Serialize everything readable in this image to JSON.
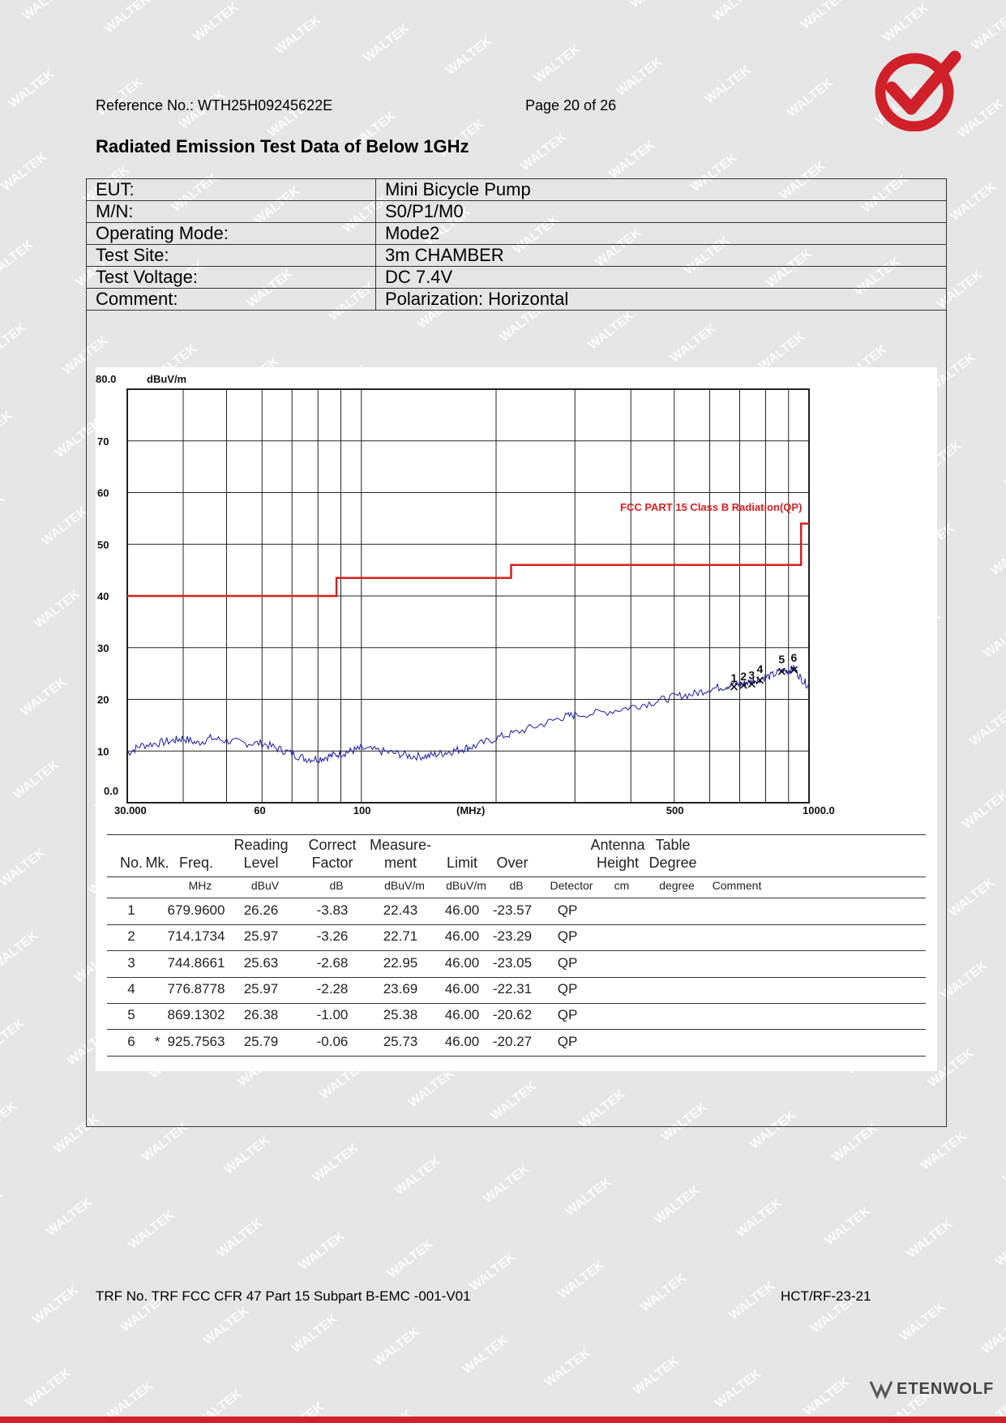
{
  "header": {
    "reference": "Reference No.: WTH25H09245622E",
    "page": "Page 20 of 26"
  },
  "title": "Radiated Emission Test Data of Below 1GHz",
  "info": [
    {
      "label": "EUT:",
      "value": "Mini Bicycle Pump"
    },
    {
      "label": "M/N:",
      "value": "S0/P1/M0"
    },
    {
      "label": "Operating Mode:",
      "value": "Mode2"
    },
    {
      "label": "Test Site:",
      "value": "3m CHAMBER"
    },
    {
      "label": "Test Voltage:",
      "value": "DC 7.4V"
    },
    {
      "label": "Comment:",
      "value": "Polarization: Horizontal"
    }
  ],
  "colors": {
    "limit": "#d81e1e",
    "trace": "#1a1aa8",
    "brand": "#d0202a"
  },
  "chart_data": {
    "type": "line",
    "x_scale": "log",
    "xlim": [
      30,
      1000
    ],
    "ylim": [
      0,
      80
    ],
    "yunit": "dBuV/m",
    "xunit": "(MHz)",
    "x_tick_labels": [
      {
        "x": 30,
        "label": "30.000"
      },
      {
        "x": 60,
        "label": "60"
      },
      {
        "x": 100,
        "label": "100"
      },
      {
        "x": 170,
        "label": "(MHz)"
      },
      {
        "x": 500,
        "label": "500"
      },
      {
        "x": 1000,
        "label": "1000.0"
      }
    ],
    "y_tick_labels": [
      {
        "y": 80,
        "label": "80.0"
      },
      {
        "y": 70,
        "label": "70"
      },
      {
        "y": 60,
        "label": "60"
      },
      {
        "y": 50,
        "label": "50"
      },
      {
        "y": 40,
        "label": "40"
      },
      {
        "y": 30,
        "label": "30"
      },
      {
        "y": 20,
        "label": "20"
      },
      {
        "y": 10,
        "label": "10"
      },
      {
        "y": 0,
        "label": "0.0"
      }
    ],
    "limit_label": "FCC PART 15 Class B Radiation(QP)",
    "series": [
      {
        "name": "FCC PART 15 Class B Radiation(QP)",
        "points": [
          [
            30,
            40
          ],
          [
            88,
            40
          ],
          [
            88,
            43.5
          ],
          [
            216,
            43.5
          ],
          [
            216,
            46
          ],
          [
            960,
            46
          ],
          [
            960,
            54
          ],
          [
            1000,
            54
          ]
        ]
      },
      {
        "name": "",
        "points": [
          [
            30,
            9.5
          ],
          [
            32,
            11
          ],
          [
            35,
            11.5
          ],
          [
            38,
            12
          ],
          [
            40,
            12.5
          ],
          [
            43,
            11.5
          ],
          [
            46,
            12.5
          ],
          [
            50,
            12
          ],
          [
            55,
            11.5
          ],
          [
            60,
            11.5
          ],
          [
            65,
            10.5
          ],
          [
            70,
            9.5
          ],
          [
            75,
            8.5
          ],
          [
            80,
            8.5
          ],
          [
            85,
            9
          ],
          [
            90,
            9.5
          ],
          [
            95,
            10
          ],
          [
            100,
            10.5
          ],
          [
            110,
            10
          ],
          [
            120,
            9.5
          ],
          [
            130,
            9
          ],
          [
            140,
            9
          ],
          [
            150,
            9.5
          ],
          [
            160,
            10
          ],
          [
            170,
            10.5
          ],
          [
            180,
            11
          ],
          [
            200,
            12.5
          ],
          [
            220,
            13.5
          ],
          [
            250,
            15
          ],
          [
            280,
            16.5
          ],
          [
            300,
            17
          ],
          [
            350,
            17.5
          ],
          [
            400,
            18.5
          ],
          [
            450,
            19.5
          ],
          [
            500,
            20.5
          ],
          [
            550,
            21
          ],
          [
            600,
            22
          ],
          [
            650,
            22.5
          ],
          [
            680,
            23
          ],
          [
            714,
            23
          ],
          [
            745,
            23.5
          ],
          [
            777,
            24
          ],
          [
            820,
            24.5
          ],
          [
            869,
            25.5
          ],
          [
            900,
            25.5
          ],
          [
            926,
            26
          ],
          [
            960,
            24
          ],
          [
            1000,
            22.5
          ]
        ]
      }
    ],
    "markers": [
      {
        "no": "1",
        "x": 679.96,
        "y": 22.43
      },
      {
        "no": "2",
        "x": 714.1734,
        "y": 22.71
      },
      {
        "no": "3",
        "x": 744.8661,
        "y": 22.95
      },
      {
        "no": "4",
        "x": 776.8778,
        "y": 23.69
      },
      {
        "no": "5",
        "x": 869.1302,
        "y": 25.38
      },
      {
        "no": "6",
        "x": 925.7563,
        "y": 25.73
      }
    ]
  },
  "results": {
    "headers": [
      "No.",
      "Mk.",
      "Freq.",
      "Reading\nLevel",
      "Correct\nFactor",
      "Measure-\nment",
      "Limit",
      "Over",
      "",
      "Antenna\nHeight",
      "Table\nDegree",
      ""
    ],
    "units": [
      "",
      "",
      "MHz",
      "dBuV",
      "dB",
      "dBuV/m",
      "dBuV/m",
      "dB",
      "Detector",
      "cm",
      "degree",
      "Comment"
    ],
    "rows": [
      [
        "1",
        "",
        "679.9600",
        "26.26",
        "-3.83",
        "22.43",
        "46.00",
        "-23.57",
        "QP"
      ],
      [
        "2",
        "",
        "714.1734",
        "25.97",
        "-3.26",
        "22.71",
        "46.00",
        "-23.29",
        "QP"
      ],
      [
        "3",
        "",
        "744.8661",
        "25.63",
        "-2.68",
        "22.95",
        "46.00",
        "-23.05",
        "QP"
      ],
      [
        "4",
        "",
        "776.8778",
        "25.97",
        "-2.28",
        "23.69",
        "46.00",
        "-22.31",
        "QP"
      ],
      [
        "5",
        "",
        "869.1302",
        "26.38",
        "-1.00",
        "25.38",
        "46.00",
        "-20.62",
        "QP"
      ],
      [
        "6",
        "*",
        "925.7563",
        "25.79",
        "-0.06",
        "25.73",
        "46.00",
        "-20.27",
        "QP"
      ]
    ]
  },
  "footer": {
    "trf": "TRF No. TRF FCC CFR 47 Part 15 Subpart B-EMC -001-V01",
    "code": "HCT/RF-23-21",
    "brand": "ETENWOLF"
  }
}
